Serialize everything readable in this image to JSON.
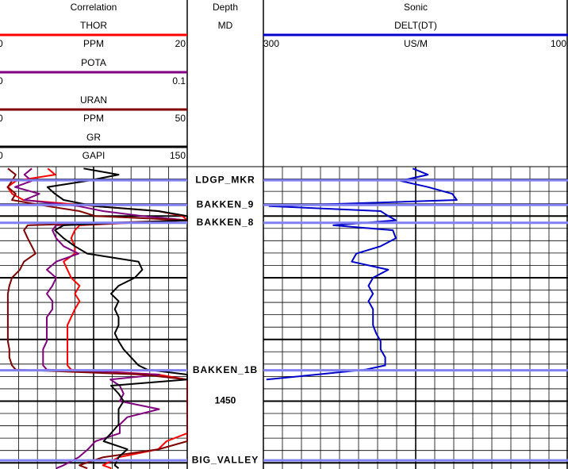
{
  "log": {
    "depth_range": [
      1412,
      1461
    ],
    "major_ticks": [
      1420,
      1430,
      1440,
      1460
    ],
    "minor_ticks": [
      1414,
      1416,
      1418,
      1422,
      1424,
      1426,
      1428,
      1432,
      1434,
      1436,
      1438,
      1442,
      1444,
      1446,
      1448,
      1452,
      1454,
      1456,
      1458
    ],
    "depth_labels": [
      1450
    ],
    "depth_title": "Depth",
    "depth_unit": "MD",
    "depth": [
      1412.3,
      1413.3,
      1414.3,
      1415.3,
      1416.4,
      1417.4,
      1418.4,
      1419.2,
      1420.0,
      1420.7,
      1421.5,
      1422.3,
      1423.6,
      1424.9,
      1426.1,
      1427.4,
      1428.7,
      1430.0,
      1431.3,
      1432.6,
      1433.8,
      1435.1,
      1436.4,
      1437.7,
      1439.0,
      1440.3,
      1441.6,
      1442.9,
      1444.2,
      1444.9,
      1445.7,
      1446.5,
      1447.5,
      1448.8,
      1450.0,
      1451.3,
      1452.6,
      1453.8,
      1455.2,
      1456.5,
      1457.8,
      1459.1,
      1460.4,
      1460.9
    ],
    "tops": [
      {
        "name": "LDGP_MKR",
        "depth": 1414.2
      },
      {
        "name": "BAKKEN_9",
        "depth": 1418.2
      },
      {
        "name": "BAKKEN_8",
        "depth": 1421.1
      },
      {
        "name": "BAKKEN_1B",
        "depth": 1445.0
      },
      {
        "name": "BIG_VALLEY",
        "depth": 1459.6
      }
    ],
    "tops_color": "#8080f0",
    "tracks": [
      {
        "title": "Correlation",
        "curves": [
          {
            "name": "THOR",
            "unit": "PPM",
            "scale": [
              0,
              20
            ],
            "color": "#ff0000",
            "values": [
              5.1,
              5.9,
              1.7,
              0.8,
              1.3,
              2.5,
              10.2,
              16.9,
              19.5,
              20,
              8.5,
              8.0,
              7.6,
              8.0,
              8.0,
              6.8,
              7.2,
              7.6,
              8.5,
              8.0,
              8.5,
              8.0,
              7.6,
              7.2,
              7.2,
              7.2,
              7.2,
              7.2,
              7.2,
              7.6,
              16.9,
              20,
              20,
              20,
              20,
              20,
              20,
              20,
              20,
              17.8,
              16.9,
              12.7,
              11.0,
              11.9
            ]
          },
          {
            "name": "POTA",
            "scale": [
              0,
              0.1
            ],
            "color": "#800080",
            "values": [
              0.017,
              0.013,
              0.017,
              0.008,
              0.021,
              0.013,
              0.042,
              0.055,
              0.076,
              0.1,
              0.03,
              0.028,
              0.03,
              0.034,
              0.042,
              0.03,
              0.025,
              0.03,
              0.028,
              0.025,
              0.028,
              0.028,
              0.025,
              0.025,
              0.025,
              0.025,
              0.023,
              0.023,
              0.023,
              0.025,
              0.085,
              0.059,
              0.064,
              0.066,
              0.064,
              0.085,
              0.068,
              0.064,
              0.064,
              0.051,
              0.047,
              0.042,
              0.034,
              0.03
            ]
          },
          {
            "name": "URAN",
            "unit": "PPM",
            "scale": [
              0,
              50
            ],
            "color": "#800000",
            "values": [
              2.1,
              4.2,
              3.2,
              2.1,
              4.2,
              3.2,
              12.7,
              21.2,
              25.4,
              50,
              7.4,
              6.4,
              7.4,
              8.5,
              9.5,
              6.4,
              5.3,
              3.2,
              2.5,
              2.1,
              2.1,
              2.1,
              2.1,
              2.1,
              2.1,
              2.1,
              2.5,
              2.5,
              3.2,
              4.2,
              38.1,
              50,
              50,
              50,
              50,
              50,
              50,
              50,
              50,
              50,
              42.4,
              27.5,
              21.2,
              23.3
            ]
          },
          {
            "name": "GR",
            "unit": "GAPI",
            "scale": [
              0,
              150
            ],
            "color": "#000000",
            "values": [
              67,
              95,
              70,
              38,
              44,
              51,
              76,
              127,
              150,
              150,
              51,
              44,
              51,
              60,
              70,
              111,
              114,
              108,
              95,
              89,
              95,
              92,
              95,
              95,
              92,
              95,
              99,
              105,
              111,
              118,
              150,
              150,
              89,
              95,
              99,
              95,
              95,
              95,
              89,
              83,
              102,
              95,
              92,
              95
            ]
          }
        ]
      },
      {
        "title": "Sonic",
        "curves": [
          {
            "name": "DELT(DT)",
            "unit": "US/M",
            "scale": [
              300,
              100
            ],
            "color": "#0000cc",
            "values": [
              202,
              192,
              210,
              192,
              176,
              173,
              296,
              223,
              218,
              213,
              254,
              215,
              213,
              223,
              239,
              242,
              218,
              228,
              231,
              228,
              231,
              228,
              228,
              228,
              226,
              223,
              223,
              220,
              220,
              233,
              265,
              298,
              null,
              null,
              null,
              null,
              null,
              null,
              null,
              null,
              null,
              null,
              null,
              null
            ]
          }
        ]
      }
    ]
  }
}
